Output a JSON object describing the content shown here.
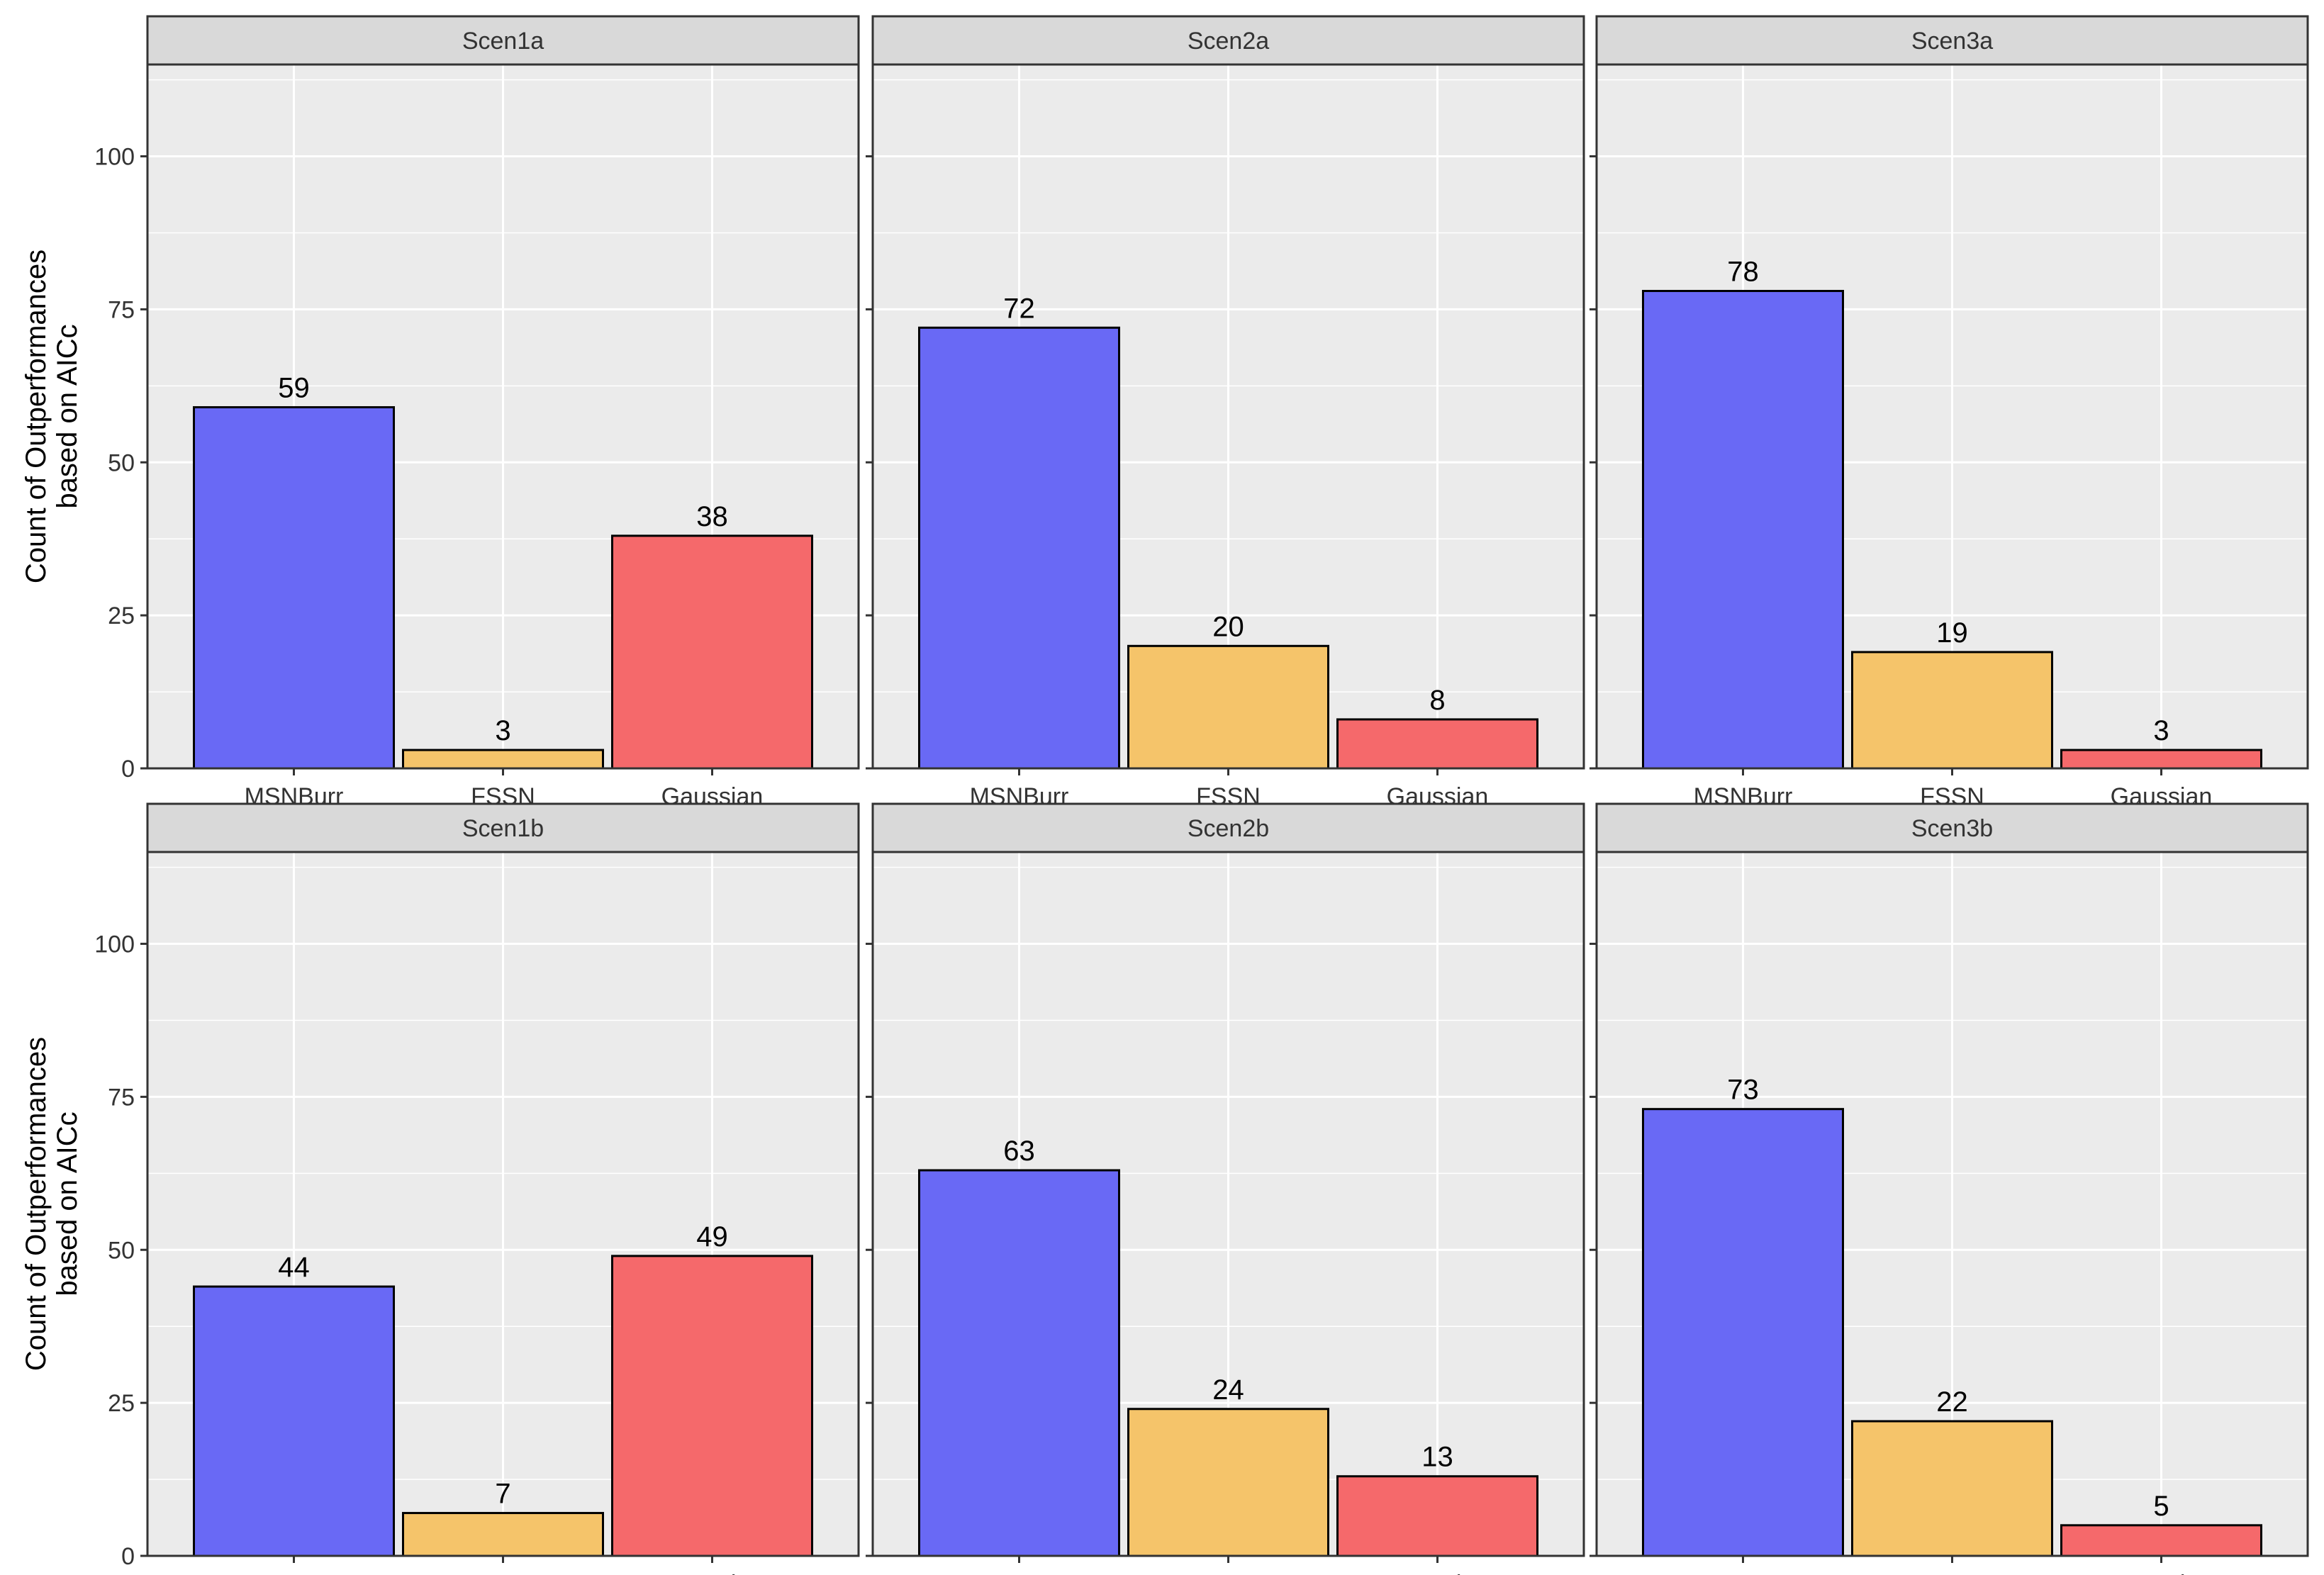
{
  "ylabel_lines": [
    "Count of Outperformances",
    "based on AICc"
  ],
  "colors": {
    "MSNBurr": "#6969F5",
    "FSSN": "#F5C46A",
    "Gaussian": "#F5696B",
    "panel_bg": "#EBEBEB",
    "strip_bg": "#D9D9D9",
    "grid": "#FFFFFF",
    "border": "#333333",
    "text": "#000000",
    "tick_text": "#333333"
  },
  "chart_data": {
    "type": "bar",
    "facet_layout": "2 rows x 3 columns",
    "categories": [
      "MSNBurr",
      "FSSN",
      "Gaussian"
    ],
    "ylim": [
      0,
      115
    ],
    "yticks": [
      0,
      25,
      50,
      75,
      100
    ],
    "ylabel": "Count of Outperformances based on AICc",
    "xlabel": "",
    "panels": [
      {
        "title": "Scen1a",
        "values": [
          59,
          3,
          38
        ]
      },
      {
        "title": "Scen2a",
        "values": [
          72,
          20,
          8
        ]
      },
      {
        "title": "Scen3a",
        "values": [
          78,
          19,
          3
        ]
      },
      {
        "title": "Scen1b",
        "values": [
          44,
          7,
          49
        ]
      },
      {
        "title": "Scen2b",
        "values": [
          63,
          24,
          13
        ]
      },
      {
        "title": "Scen3b",
        "values": [
          73,
          22,
          5
        ]
      }
    ]
  }
}
